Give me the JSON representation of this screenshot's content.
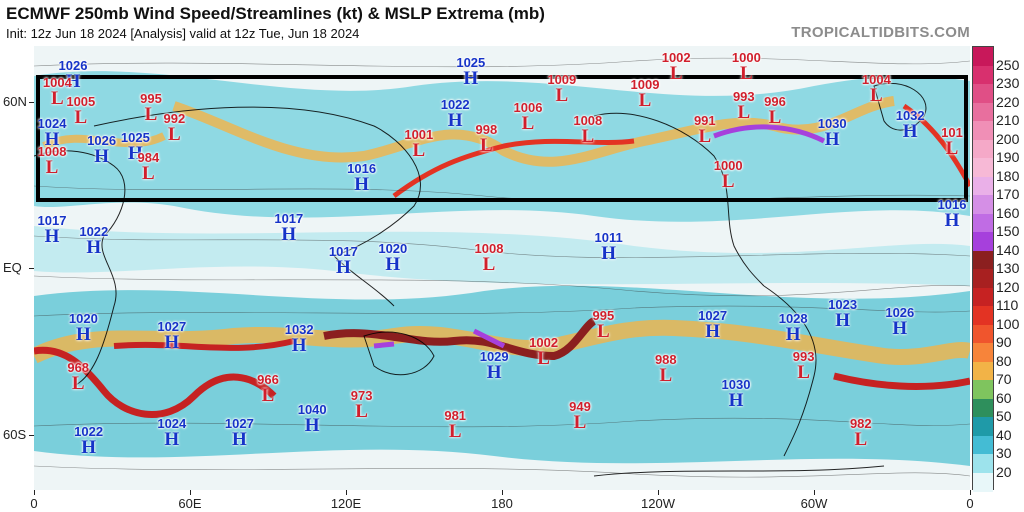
{
  "header": {
    "title": "ECMWF 250mb Wind Speed/Streamlines (kt) & MSLP Extrema (mb)",
    "subtitle": "Init: 12z Jun 18 2024   [Analysis]   valid at 12z Tue, Jun 18 2024",
    "brand": "TROPICALTIDBITS.COM"
  },
  "axes": {
    "lat_labels": [
      "60N",
      "EQ",
      "60S"
    ],
    "lon_labels": [
      "0",
      "60E",
      "120E",
      "180",
      "120W",
      "60W",
      "0"
    ]
  },
  "colorbar": {
    "labels": [
      "250",
      "230",
      "220",
      "210",
      "200",
      "190",
      "180",
      "170",
      "160",
      "150",
      "140",
      "130",
      "120",
      "110",
      "100",
      "90",
      "80",
      "70",
      "60",
      "50",
      "40",
      "30",
      "20"
    ],
    "colors": [
      "#c8185a",
      "#d8306e",
      "#e04f86",
      "#e86f9e",
      "#f08fb6",
      "#f5a9c8",
      "#f7b9d6",
      "#eab0e8",
      "#d58fe6",
      "#c06ce4",
      "#a640dc",
      "#8b1f1f",
      "#a82020",
      "#c62222",
      "#e33323",
      "#f0552d",
      "#f7843a",
      "#f2b347",
      "#7fc45e",
      "#2e8f5c",
      "#1f9aa8",
      "#44bcd4",
      "#9de3ec",
      "#e8f7f9"
    ]
  },
  "systems": [
    {
      "type": "H",
      "value": "1026",
      "lon": 15,
      "lat": 71
    },
    {
      "type": "H",
      "value": "1025",
      "lon": 168,
      "lat": 72
    },
    {
      "type": "L",
      "value": "1002",
      "lon": 247,
      "lat": 74
    },
    {
      "type": "L",
      "value": "1000",
      "lon": 274,
      "lat": 74
    },
    {
      "type": "L",
      "value": "1004",
      "lon": 9,
      "lat": 65
    },
    {
      "type": "L",
      "value": "1009",
      "lon": 203,
      "lat": 66
    },
    {
      "type": "L",
      "value": "1009",
      "lon": 235,
      "lat": 64
    },
    {
      "type": "L",
      "value": "1004",
      "lon": 324,
      "lat": 66
    },
    {
      "type": "L",
      "value": "1005",
      "lon": 18,
      "lat": 58
    },
    {
      "type": "L",
      "value": "995",
      "lon": 45,
      "lat": 59
    },
    {
      "type": "L",
      "value": "993",
      "lon": 273,
      "lat": 60
    },
    {
      "type": "L",
      "value": "996",
      "lon": 285,
      "lat": 58
    },
    {
      "type": "H",
      "value": "1022",
      "lon": 162,
      "lat": 57
    },
    {
      "type": "L",
      "value": "1006",
      "lon": 190,
      "lat": 56
    },
    {
      "type": "L",
      "value": "992",
      "lon": 54,
      "lat": 52
    },
    {
      "type": "L",
      "value": "1008",
      "lon": 213,
      "lat": 51
    },
    {
      "type": "H",
      "value": "1032",
      "lon": 337,
      "lat": 53
    },
    {
      "type": "H",
      "value": "1024",
      "lon": 5,
      "lat": 50
    },
    {
      "type": "L",
      "value": "991",
      "lon": 258,
      "lat": 51
    },
    {
      "type": "H",
      "value": "1030",
      "lon": 307,
      "lat": 50
    },
    {
      "type": "L",
      "value": "1001",
      "lon": 148,
      "lat": 46
    },
    {
      "type": "L",
      "value": "998",
      "lon": 174,
      "lat": 48
    },
    {
      "type": "L",
      "value": "101",
      "lon": 358,
      "lat": 47
    },
    {
      "type": "H",
      "value": "1026",
      "lon": 26,
      "lat": 44
    },
    {
      "type": "H",
      "value": "1025",
      "lon": 39,
      "lat": 45
    },
    {
      "type": "L",
      "value": "1008",
      "lon": 0,
      "lat": 40
    },
    {
      "type": "L",
      "value": "984",
      "lon": 44,
      "lat": 38
    },
    {
      "type": "H",
      "value": "1016",
      "lon": 126,
      "lat": 34
    },
    {
      "type": "L",
      "value": "1000",
      "lon": 267,
      "lat": 35
    },
    {
      "type": "H",
      "value": "1016",
      "lon": 360,
      "lat": 21
    },
    {
      "type": "H",
      "value": "1017",
      "lon": 6,
      "lat": 15
    },
    {
      "type": "H",
      "value": "1017",
      "lon": 98,
      "lat": 16
    },
    {
      "type": "H",
      "value": "1022",
      "lon": 23,
      "lat": 11
    },
    {
      "type": "H",
      "value": "1011",
      "lon": 221,
      "lat": 9
    },
    {
      "type": "L",
      "value": "1008",
      "lon": 175,
      "lat": 5
    },
    {
      "type": "H",
      "value": "1017",
      "lon": 119,
      "lat": 4
    },
    {
      "type": "H",
      "value": "1020",
      "lon": 138,
      "lat": 5
    },
    {
      "type": "H",
      "value": "1023",
      "lon": 311,
      "lat": -15
    },
    {
      "type": "H",
      "value": "1026",
      "lon": 333,
      "lat": -18
    },
    {
      "type": "H",
      "value": "1020",
      "lon": 19,
      "lat": -20
    },
    {
      "type": "H",
      "value": "1027",
      "lon": 261,
      "lat": -19
    },
    {
      "type": "H",
      "value": "1028",
      "lon": 292,
      "lat": -20
    },
    {
      "type": "L",
      "value": "995",
      "lon": 219,
      "lat": -19
    },
    {
      "type": "H",
      "value": "1027",
      "lon": 53,
      "lat": -23
    },
    {
      "type": "H",
      "value": "1032",
      "lon": 102,
      "lat": -24
    },
    {
      "type": "L",
      "value": "1002",
      "lon": 196,
      "lat": -29
    },
    {
      "type": "H",
      "value": "1029",
      "lon": 177,
      "lat": -34
    },
    {
      "type": "L",
      "value": "988",
      "lon": 243,
      "lat": -35
    },
    {
      "type": "L",
      "value": "993",
      "lon": 296,
      "lat": -34
    },
    {
      "type": "L",
      "value": "968",
      "lon": 17,
      "lat": -38
    },
    {
      "type": "L",
      "value": "966",
      "lon": 90,
      "lat": -42
    },
    {
      "type": "H",
      "value": "1030",
      "lon": 270,
      "lat": -44
    },
    {
      "type": "L",
      "value": "973",
      "lon": 126,
      "lat": -48
    },
    {
      "type": "L",
      "value": "949",
      "lon": 210,
      "lat": -52
    },
    {
      "type": "L",
      "value": "981",
      "lon": 162,
      "lat": -55
    },
    {
      "type": "H",
      "value": "1040",
      "lon": 107,
      "lat": -53
    },
    {
      "type": "H",
      "value": "1024",
      "lon": 53,
      "lat": -58
    },
    {
      "type": "H",
      "value": "1027",
      "lon": 79,
      "lat": -58
    },
    {
      "type": "L",
      "value": "982",
      "lon": 318,
      "lat": -58
    },
    {
      "type": "H",
      "value": "1022",
      "lon": 21,
      "lat": -61
    }
  ]
}
